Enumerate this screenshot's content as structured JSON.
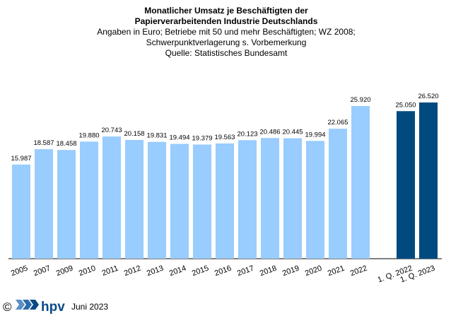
{
  "chart_data": {
    "type": "bar",
    "title": [
      "Monatlicher Umsatz je Beschäftigten der",
      "Papierverarbeitenden Industrie Deutschlands"
    ],
    "subtitle": [
      "Angaben  in Euro; Betriebe mit 50 und mehr Beschäftigten; WZ 2008;",
      "Schwerpunktverlagerung   s. Vorbemerkung",
      "Quelle: Statistisches Bundesamt"
    ],
    "categories": [
      "2005",
      "2007",
      "2009",
      "2010",
      "2011",
      "2012",
      "2013",
      "2014",
      "2015",
      "2016",
      "2017",
      "2018",
      "2019",
      "2020",
      "2021",
      "2022",
      null,
      "1. Q. 2022",
      "1. Q. 2023"
    ],
    "values": [
      15987,
      18587,
      18458,
      19880,
      20743,
      20158,
      19831,
      19494,
      19379,
      19563,
      20123,
      20486,
      20445,
      19994,
      22065,
      25920,
      null,
      25050,
      26520
    ],
    "value_labels": [
      "15.987",
      "18.587",
      "18.458",
      "19.880",
      "20.743",
      "20.158",
      "19.831",
      "19.494",
      "19.379",
      "19.563",
      "20.123",
      "20.486",
      "20.445",
      "19.994",
      "22.065",
      "25.920",
      null,
      "25.050",
      "26.520"
    ],
    "colors": [
      "#99ccff",
      "#99ccff",
      "#99ccff",
      "#99ccff",
      "#99ccff",
      "#99ccff",
      "#99ccff",
      "#99ccff",
      "#99ccff",
      "#99ccff",
      "#99ccff",
      "#99ccff",
      "#99ccff",
      "#99ccff",
      "#99ccff",
      "#99ccff",
      null,
      "#004a80",
      "#004a80"
    ]
  },
  "footer": {
    "copyright": "©",
    "logo": "hpv",
    "date": "Juni 2023"
  }
}
